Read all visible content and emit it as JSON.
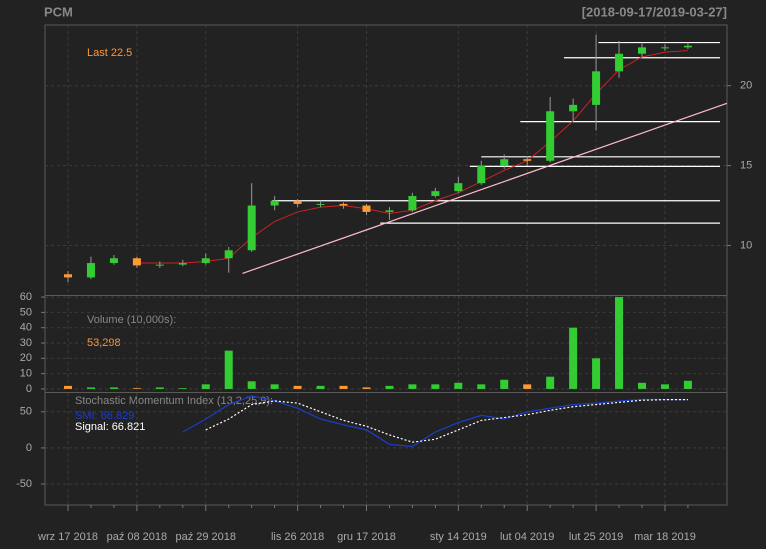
{
  "chart_data": [
    {
      "type": "candlestick",
      "title": "PCM",
      "subtitle": "[2018-09-17/2019-03-27]",
      "annotation": "Last 22.5",
      "categories": [
        "wrz 17 2018",
        null,
        null,
        "paź 08 2018",
        null,
        null,
        "paź 29 2018",
        null,
        null,
        null,
        "lis 26 2018",
        null,
        null,
        "gru 17 2018",
        null,
        null,
        null,
        "sty 14 2019",
        null,
        null,
        "lut 04 2019",
        null,
        null,
        "lut 25 2019",
        null,
        null,
        "mar 18 2019",
        null
      ],
      "open": [
        8.2,
        8.0,
        8.9,
        9.2,
        8.75,
        8.8,
        8.9,
        9.2,
        9.7,
        12.5,
        12.8,
        12.6,
        12.6,
        12.5,
        12.1,
        12.2,
        13.1,
        13.4,
        13.9,
        15.0,
        15.4,
        15.3,
        18.4,
        18.8,
        20.9,
        22.0,
        22.4,
        22.4
      ],
      "high": [
        8.4,
        9.3,
        9.4,
        9.3,
        9.0,
        9.1,
        9.5,
        9.9,
        13.9,
        13.1,
        12.9,
        12.8,
        12.7,
        12.6,
        12.4,
        13.3,
        13.6,
        14.3,
        15.3,
        15.7,
        15.6,
        19.3,
        19.2,
        23.2,
        22.8,
        22.7,
        22.6,
        22.7
      ],
      "low": [
        7.7,
        7.9,
        8.8,
        8.6,
        8.6,
        8.7,
        8.8,
        8.3,
        9.6,
        12.2,
        12.4,
        12.4,
        12.3,
        11.9,
        11.6,
        12.1,
        13.0,
        13.3,
        13.8,
        14.8,
        15.0,
        15.2,
        17.8,
        17.2,
        20.5,
        21.8,
        22.2,
        22.3
      ],
      "close": [
        8.0,
        8.9,
        9.2,
        8.75,
        8.8,
        8.9,
        9.2,
        9.7,
        12.5,
        12.8,
        12.6,
        12.6,
        12.5,
        12.1,
        12.2,
        13.1,
        13.4,
        13.9,
        15.0,
        15.4,
        15.3,
        18.4,
        18.8,
        20.9,
        22.0,
        22.4,
        22.4,
        22.5
      ],
      "ma": [
        null,
        null,
        null,
        8.9,
        8.9,
        8.9,
        9.0,
        9.2,
        10.5,
        11.5,
        12.1,
        12.4,
        12.5,
        12.3,
        12.0,
        12.2,
        12.8,
        13.3,
        14.0,
        14.7,
        15.3,
        16.5,
        17.8,
        19.5,
        21.0,
        21.8,
        22.1,
        22.2
      ],
      "hlines": [
        {
          "level": 22.7,
          "from": 23.1
        },
        {
          "level": 21.75,
          "from": 21.6
        },
        {
          "level": 17.75,
          "from": 19.7
        },
        {
          "level": 15.55,
          "from": 18.0
        },
        {
          "level": 14.95,
          "from": 17.5
        },
        {
          "level": 12.8,
          "from": 8.9
        },
        {
          "level": 11.4,
          "from": 13.6
        }
      ],
      "trendline": {
        "x": [
          7.6,
          28.7
        ],
        "y": [
          8.25,
          18.9
        ]
      },
      "up_color": "#33cc33",
      "down_color": "#ff9933",
      "ma_color": "#cc2222",
      "trend_color": "#ffbbcc",
      "hline_color": "#ffffff",
      "ylim": [
        6.9,
        23.8
      ],
      "yticks": [
        10,
        15,
        20
      ],
      "grid": true
    },
    {
      "type": "bar",
      "label": "Volume (10,000s):",
      "last_label": "53,298",
      "values": [
        2,
        1,
        1,
        0.5,
        1,
        0.5,
        3,
        25,
        5,
        3,
        2,
        2,
        2,
        1,
        2,
        3,
        3,
        4,
        3,
        6,
        3,
        8,
        40,
        20,
        60,
        4,
        3,
        5.3298
      ],
      "ylim": [
        -2,
        60.7
      ],
      "yticks": [
        0,
        10,
        20,
        30,
        40,
        50,
        60
      ],
      "grid": true
    },
    {
      "type": "line",
      "title": "Stochastic Momentum Index (13,2,25,9):",
      "series": [
        {
          "name": "SMI: 66.829",
          "color": "#1a3dcc",
          "values": [
            null,
            null,
            null,
            null,
            null,
            22,
            40,
            60,
            72,
            65,
            55,
            40,
            32,
            25,
            5,
            2,
            22,
            35,
            45,
            40,
            50,
            55,
            60,
            62,
            65,
            67,
            67,
            66.829
          ]
        },
        {
          "name": "Signal: 66.821",
          "color": "#ffffff",
          "values": [
            null,
            null,
            null,
            null,
            null,
            null,
            25,
            40,
            60,
            65,
            62,
            50,
            38,
            30,
            18,
            8,
            12,
            25,
            38,
            42,
            46,
            52,
            57,
            60,
            63,
            66,
            66.8,
            66.821
          ]
        }
      ],
      "ylim": [
        -79,
        76
      ],
      "yticks": [
        -50,
        0,
        50
      ],
      "grid": true
    }
  ]
}
